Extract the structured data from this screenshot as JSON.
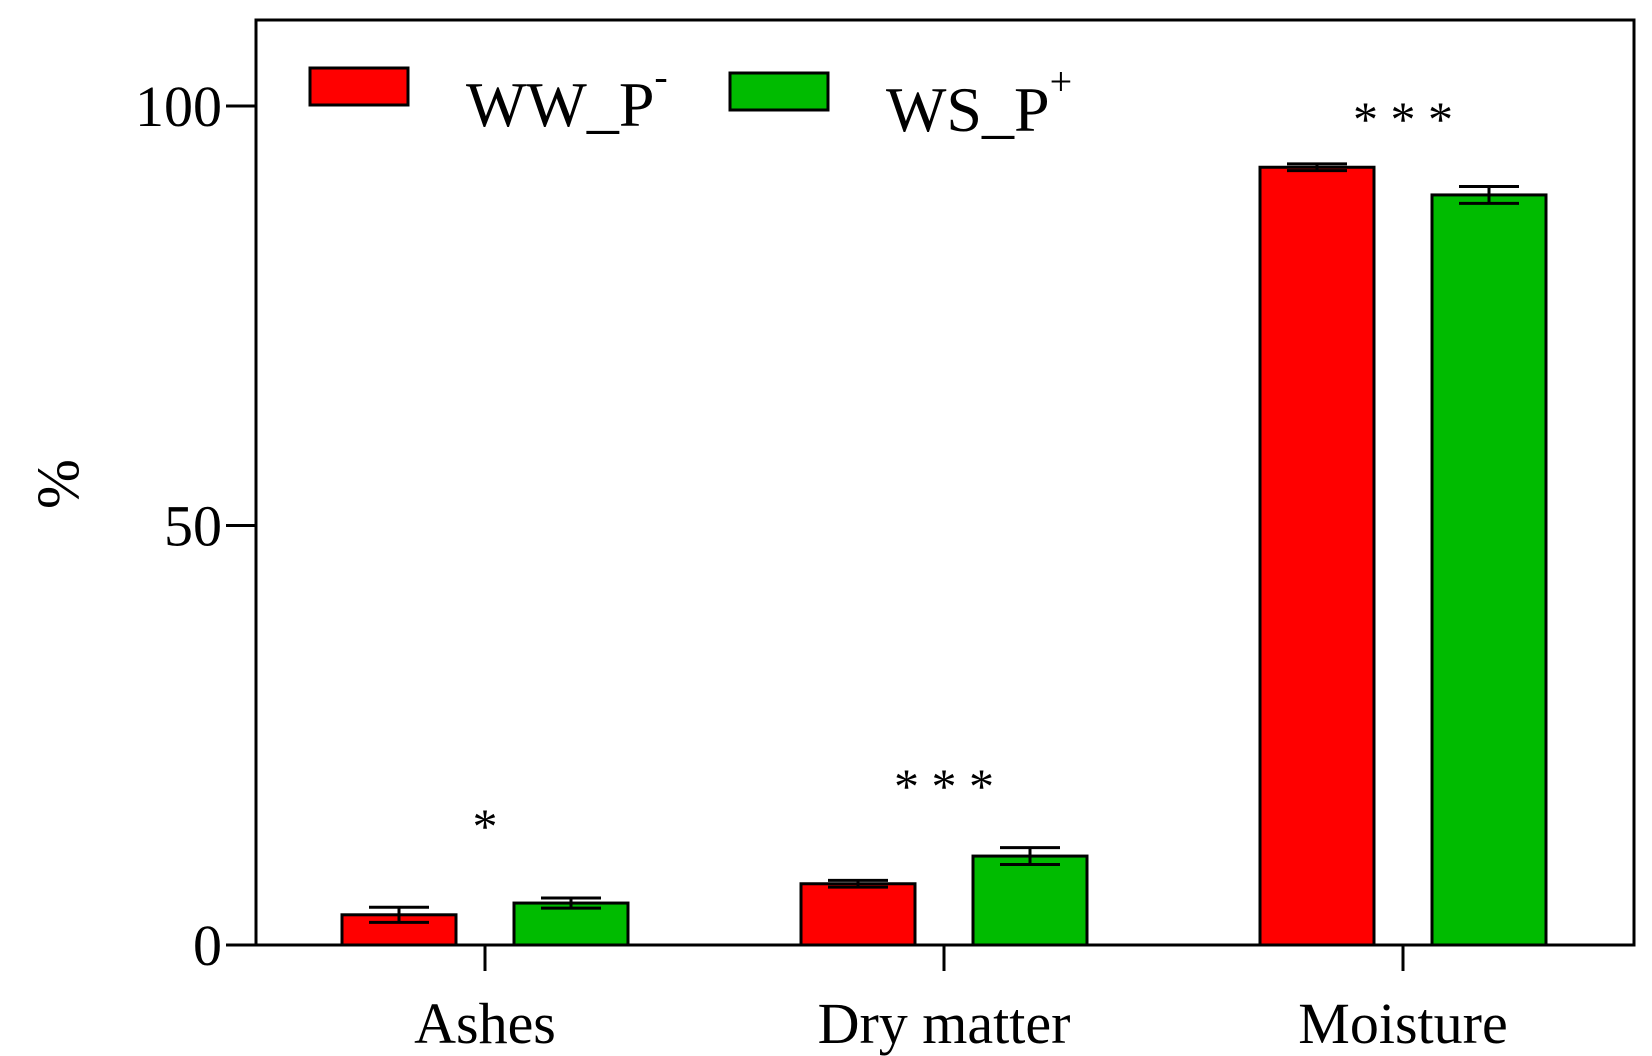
{
  "chart_data": {
    "type": "bar",
    "title": "",
    "xlabel": "",
    "ylabel": "%",
    "ylim": [
      0,
      110
    ],
    "yticks": [
      0,
      50,
      100
    ],
    "categories": [
      "Ashes",
      "Dry matter",
      "Moisture"
    ],
    "series": [
      {
        "name": "WW_P",
        "superscript": "-",
        "color": "#ff0000",
        "values": [
          3.6,
          7.3,
          92.7
        ],
        "errors": [
          0.9,
          0.4,
          0.4
        ]
      },
      {
        "name": "WS_P",
        "superscript": "+",
        "color": "#00bb00",
        "values": [
          5.0,
          10.6,
          89.4
        ],
        "errors": [
          0.6,
          1.0,
          1.0
        ]
      }
    ],
    "significance": [
      "*",
      "***",
      "***"
    ],
    "grid": false,
    "legend": "top-left"
  }
}
